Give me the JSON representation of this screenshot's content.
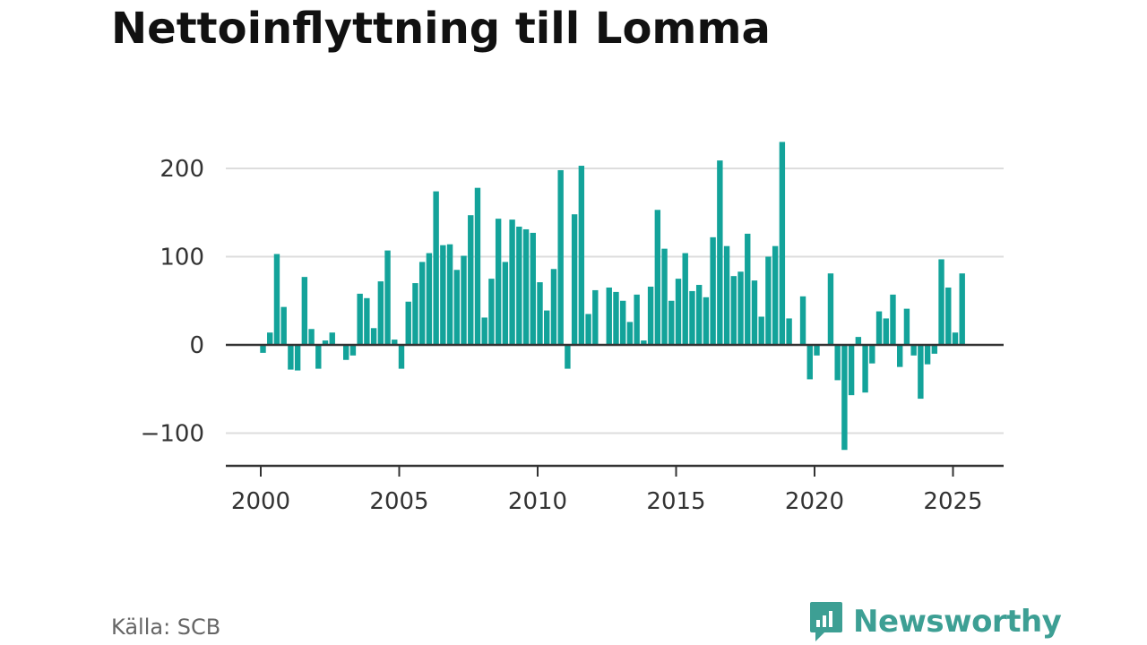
{
  "title": "Nettoinflyttning till Lomma",
  "source": "Källa: SCB",
  "brand": {
    "name": "Newsworthy",
    "icon": "newsworthy-logo-icon"
  },
  "colors": {
    "bar": "#13a39a",
    "grid": "#dddddd",
    "axis": "#333333",
    "brand": "#3d9f94"
  },
  "chart_data": {
    "type": "bar",
    "title": "Nettoinflyttning till Lomma",
    "xlabel": "",
    "ylabel": "",
    "x_unit": "quarter",
    "ylim": [
      -135,
      235
    ],
    "y_ticks": [
      -100,
      0,
      100,
      200
    ],
    "y_tick_labels": [
      "−100",
      "0",
      "100",
      "200"
    ],
    "x_ticks": [
      2000,
      2005,
      2010,
      2015,
      2020,
      2025
    ],
    "x_tick_labels": [
      "2000",
      "2005",
      "2010",
      "2015",
      "2020",
      "2025"
    ],
    "grid": true,
    "legend": "none",
    "series": [
      {
        "start_year": 2000,
        "start_quarter": 1,
        "values": [
          -9,
          14,
          103,
          43,
          -28,
          -29,
          77,
          18,
          -27,
          5,
          14,
          1,
          -17,
          -12,
          58,
          53,
          19,
          72,
          107,
          6,
          -27,
          49,
          70,
          94,
          104,
          174,
          113,
          114,
          85,
          101,
          147,
          178,
          31,
          75,
          143,
          94,
          142,
          134,
          131,
          127,
          71,
          39,
          86,
          198,
          -27,
          148,
          203,
          35,
          62,
          0,
          65,
          60,
          50,
          26,
          57,
          5,
          66,
          153,
          109,
          50,
          75,
          104,
          61,
          68,
          54,
          122,
          209,
          112,
          78,
          83,
          126,
          73,
          32,
          100,
          112,
          230,
          30,
          0,
          55,
          -39,
          -12,
          0,
          81,
          -40,
          -119,
          -57,
          9,
          -54,
          -21,
          38,
          30,
          57,
          -25,
          41,
          -12,
          -61,
          -22,
          -10,
          97,
          65,
          14,
          81
        ]
      }
    ]
  }
}
